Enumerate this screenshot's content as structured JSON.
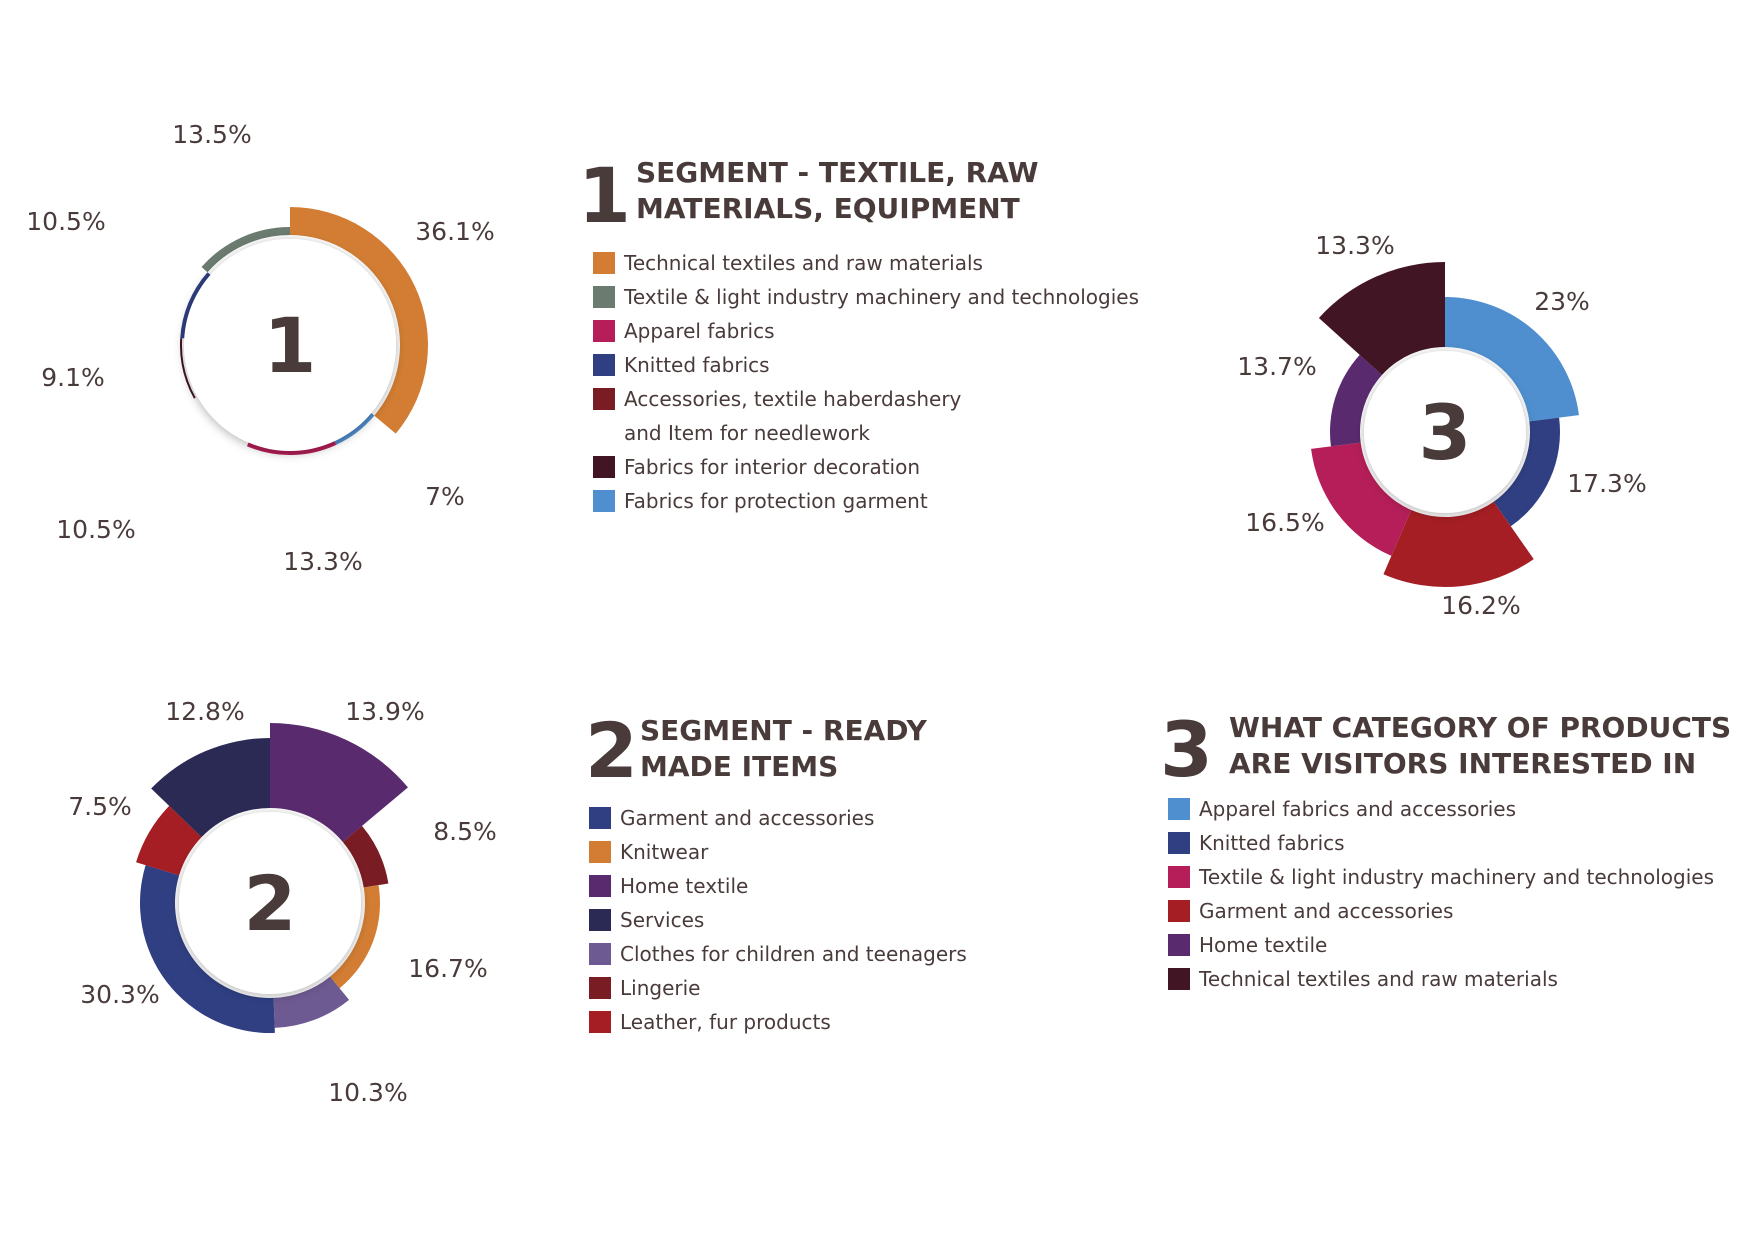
{
  "chart_data": [
    {
      "type": "pie",
      "center_label": "1",
      "title": "SEGMENT - TEXTILE, RAW\nMATERIALS, EQUIPMENT",
      "categories": [
        "Technical textiles and raw materials",
        "Textile & light industry machinery and technologies",
        "Apparel fabrics",
        "Knitted fabrics",
        "Accessories, textile haberdashery\nand Item for needlework",
        "Fabrics for interior decoration",
        "Fabrics for protection garment"
      ],
      "colors": [
        "#d27d33",
        "#6b7b70",
        "#b51e58",
        "#2f3f82",
        "#7a1c24",
        "#421524",
        "#4f8fcf"
      ],
      "slices": [
        {
          "label": "36.1%",
          "value": 36.1,
          "color": "#d27d33"
        },
        {
          "label": "7%",
          "value": 7,
          "color": "#4f8fcf"
        },
        {
          "label": "13.3%",
          "value": 13.3,
          "color": "#b51e58"
        },
        {
          "label": "10.5%",
          "value": 10.5,
          "color": "#7a1c24"
        },
        {
          "label": "9.1%",
          "value": 9.1,
          "color": "#421524"
        },
        {
          "label": "10.5%",
          "value": 10.5,
          "color": "#2f3f82"
        },
        {
          "label": "13.5%",
          "value": 13.5,
          "color": "#6b7b70"
        }
      ]
    },
    {
      "type": "pie",
      "center_label": "2",
      "title": "SEGMENT - READY\nMADE ITEMS",
      "categories": [
        "Garment and accessories",
        "Knitwear",
        "Home textile",
        "Services",
        "Clothes for children and teenagers",
        "Lingerie",
        "Leather, fur products"
      ],
      "colors": [
        "#2f3f82",
        "#d27d33",
        "#5a2a6e",
        "#2a2a55",
        "#6e5a92",
        "#7a1c24",
        "#a51e24"
      ],
      "slices": [
        {
          "label": "13.9%",
          "value": 13.9,
          "color": "#5a2a6e"
        },
        {
          "label": "8.5%",
          "value": 8.5,
          "color": "#7a1c24"
        },
        {
          "label": "16.7%",
          "value": 16.7,
          "color": "#d27d33"
        },
        {
          "label": "10.3%",
          "value": 10.3,
          "color": "#6e5a92"
        },
        {
          "label": "30.3%",
          "value": 30.3,
          "color": "#2f3f82"
        },
        {
          "label": "7.5%",
          "value": 7.5,
          "color": "#a51e24"
        },
        {
          "label": "12.8%",
          "value": 12.8,
          "color": "#2a2a55"
        }
      ]
    },
    {
      "type": "pie",
      "center_label": "3",
      "title": "WHAT CATEGORY OF PRODUCTS\nARE VISITORS INTERESTED IN",
      "categories": [
        "Apparel fabrics and accessories",
        "Knitted fabrics",
        "Textile & light industry machinery and technologies",
        "Garment and accessories",
        "Home textile",
        "Technical textiles and raw materials"
      ],
      "colors": [
        "#4f8fcf",
        "#2f3f82",
        "#b51e58",
        "#a51e24",
        "#5a2a6e",
        "#421524"
      ],
      "slices": [
        {
          "label": "23%",
          "value": 23,
          "color": "#4f8fcf"
        },
        {
          "label": "17.3%",
          "value": 17.3,
          "color": "#2f3f82"
        },
        {
          "label": "16.2%",
          "value": 16.2,
          "color": "#a51e24"
        },
        {
          "label": "16.5%",
          "value": 16.5,
          "color": "#b51e58"
        },
        {
          "label": "13.7%",
          "value": 13.7,
          "color": "#5a2a6e"
        },
        {
          "label": "13.3%",
          "value": 13.3,
          "color": "#421524"
        }
      ]
    }
  ]
}
